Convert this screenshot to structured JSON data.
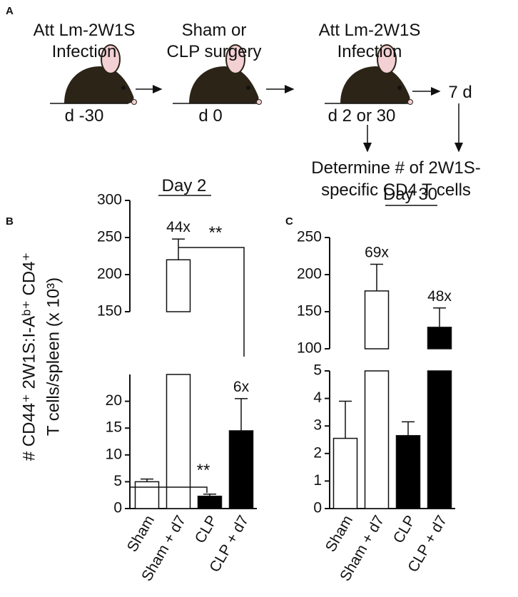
{
  "panels": [
    "A",
    "B",
    "C"
  ],
  "schematic": {
    "steps": [
      {
        "label": [
          "Att Lm-2W1S",
          "Infection"
        ],
        "day": "d -30"
      },
      {
        "label": [
          "Sham or",
          "CLP surgery"
        ],
        "day": "d 0"
      },
      {
        "label": [
          "Att Lm-2W1S",
          "Infection"
        ],
        "day": "d 2 or 30"
      }
    ],
    "delay": "7 d",
    "readout": [
      "Determine # of 2W1S-",
      "specific CD4 T cells"
    ]
  },
  "chart_data": [
    {
      "type": "bar",
      "title": "Day 2",
      "ylabel": [
        "# CD44⁺ 2W1S:I-Aᵇ⁺ CD4⁺",
        "T cells/spleen (x 10³)"
      ],
      "categories": [
        "Sham",
        "Sham + d7",
        "CLP",
        "CLP + d7"
      ],
      "values": [
        5,
        220,
        2.3,
        14.5
      ],
      "errors": [
        0.5,
        28,
        0.4,
        6
      ],
      "colors": [
        "#ffffff",
        "#ffffff",
        "#000000",
        "#000000"
      ],
      "fold_labels": [
        null,
        "44x",
        null,
        "6x"
      ],
      "significance": [
        {
          "from": 1,
          "to": 3,
          "label": "**"
        },
        {
          "from": 0,
          "to": 2,
          "label": "**"
        }
      ],
      "y_segments": [
        {
          "ylim": [
            0,
            25
          ],
          "yticks": [
            0,
            5,
            10,
            15,
            20
          ]
        },
        {
          "ylim": [
            150,
            300
          ],
          "yticks": [
            150,
            200,
            250,
            300
          ]
        }
      ]
    },
    {
      "type": "bar",
      "title": "Day 30",
      "categories": [
        "Sham",
        "Sham + d7",
        "CLP",
        "CLP + d7"
      ],
      "values": [
        2.55,
        178,
        2.65,
        129
      ],
      "errors": [
        1.35,
        36,
        0.5,
        26
      ],
      "colors": [
        "#ffffff",
        "#ffffff",
        "#000000",
        "#000000"
      ],
      "fold_labels": [
        null,
        "69x",
        null,
        "48x"
      ],
      "y_segments": [
        {
          "ylim": [
            0,
            5
          ],
          "yticks": [
            0,
            1,
            2,
            3,
            4,
            5
          ]
        },
        {
          "ylim": [
            100,
            250
          ],
          "yticks": [
            100,
            150,
            200,
            250
          ]
        }
      ]
    }
  ]
}
